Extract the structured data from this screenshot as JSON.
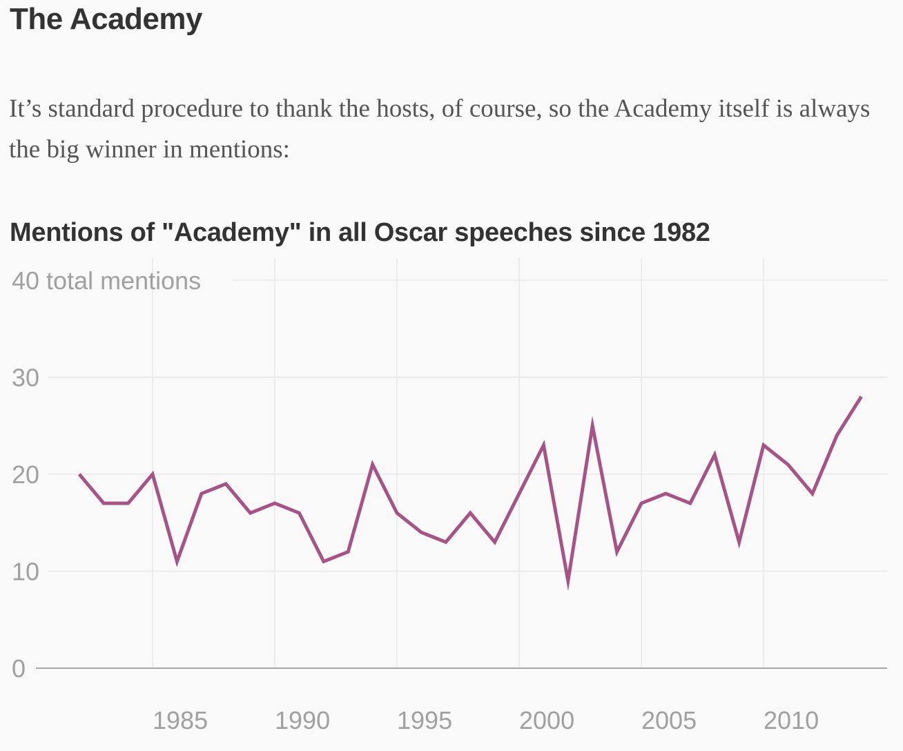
{
  "header": {
    "title": "The Academy"
  },
  "intro": {
    "text": "It’s standard procedure to thank the hosts, of course, so the Academy itself is always the big winner in mentions:"
  },
  "chart_data": {
    "type": "line",
    "title": "Mentions of \"Academy\" in all Oscar speeches since 1982",
    "ylabel": "",
    "xlabel": "",
    "y_unit_label": "total mentions",
    "ylim": [
      0,
      40
    ],
    "xlim": [
      1980.5,
      2015.3
    ],
    "y_ticks": [
      0,
      10,
      20,
      30,
      40
    ],
    "x_ticks": [
      1985,
      1990,
      1995,
      2000,
      2005,
      2010
    ],
    "grid": true,
    "line_color": "#a65485",
    "series": [
      {
        "x": [
          1982,
          1983,
          1984,
          1985,
          1986,
          1987,
          1988,
          1989,
          1990,
          1991,
          1992,
          1993,
          1994,
          1995,
          1996,
          1997,
          1998,
          1999,
          2000,
          2001,
          2002,
          2003,
          2004,
          2005,
          2006,
          2007,
          2008,
          2009,
          2010,
          2011,
          2012,
          2013,
          2014
        ],
        "values": [
          20,
          17,
          17,
          20,
          11,
          18,
          19,
          16,
          17,
          16,
          11,
          12,
          21,
          16,
          14,
          13,
          16,
          13,
          18,
          23,
          9,
          25,
          12,
          17,
          18,
          17,
          22,
          13,
          23,
          21,
          18,
          24,
          28
        ]
      }
    ]
  }
}
